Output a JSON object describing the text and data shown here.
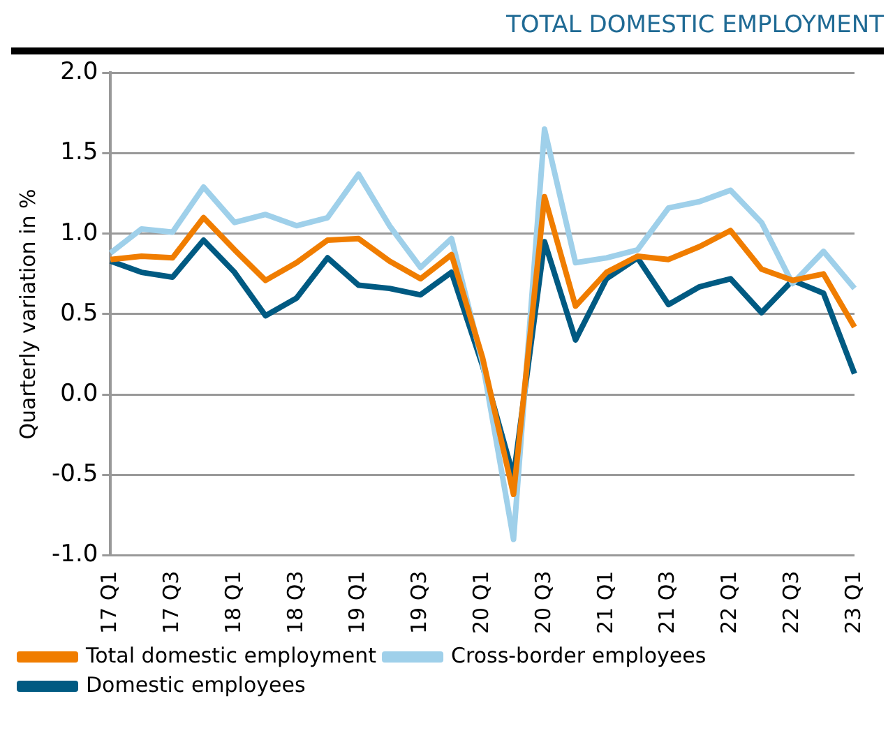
{
  "chart_data": {
    "type": "line",
    "title": "TOTAL DOMESTIC EMPLOYMENT",
    "ylabel": "Quarterly variation in %",
    "categories": [
      "17 Q1",
      null,
      "17 Q3",
      null,
      "18 Q1",
      null,
      "18 Q3",
      null,
      "19 Q1",
      null,
      "19 Q3",
      null,
      "20 Q1",
      null,
      "20 Q3",
      null,
      "21 Q1",
      null,
      "21 Q3",
      null,
      "22 Q1",
      null,
      "22 Q3",
      null,
      "23 Q1"
    ],
    "series": [
      {
        "name": "Total domestic employment",
        "color": "#f07d00",
        "values": [
          0.84,
          0.86,
          0.85,
          1.1,
          0.9,
          0.71,
          0.82,
          0.96,
          0.97,
          0.83,
          0.72,
          0.87,
          0.23,
          -0.62,
          1.23,
          0.55,
          0.76,
          0.86,
          0.84,
          0.92,
          1.02,
          0.78,
          0.71,
          0.75,
          0.42
        ]
      },
      {
        "name": "Cross-border employees",
        "color": "#9fd0ea",
        "values": [
          0.88,
          1.03,
          1.01,
          1.29,
          1.07,
          1.12,
          1.05,
          1.1,
          1.37,
          1.05,
          0.79,
          0.97,
          0.2,
          -0.9,
          1.65,
          0.82,
          0.85,
          0.9,
          1.16,
          1.2,
          1.27,
          1.07,
          0.69,
          0.89,
          0.66
        ]
      },
      {
        "name": "Domestic employees",
        "color": "#005a82",
        "values": [
          0.83,
          0.76,
          0.73,
          0.96,
          0.76,
          0.49,
          0.6,
          0.85,
          0.68,
          0.66,
          0.62,
          0.76,
          0.18,
          -0.51,
          0.95,
          0.34,
          0.72,
          0.85,
          0.56,
          0.67,
          0.72,
          0.51,
          0.71,
          0.63,
          0.13
        ]
      }
    ],
    "ylim": [
      -1,
      2
    ],
    "yticks": [
      {
        "value": -1,
        "label": "-1.0"
      },
      {
        "value": -0.5,
        "label": "-0.5"
      },
      {
        "value": 0,
        "label": "0.0"
      },
      {
        "value": 0.5,
        "label": "0.5"
      },
      {
        "value": 1,
        "label": "1.0"
      },
      {
        "value": 1.5,
        "label": "1.5"
      },
      {
        "value": 2,
        "label": "2.0"
      }
    ],
    "grid": "y",
    "legend": "bottom",
    "marker": "none",
    "line_style": "solid"
  }
}
